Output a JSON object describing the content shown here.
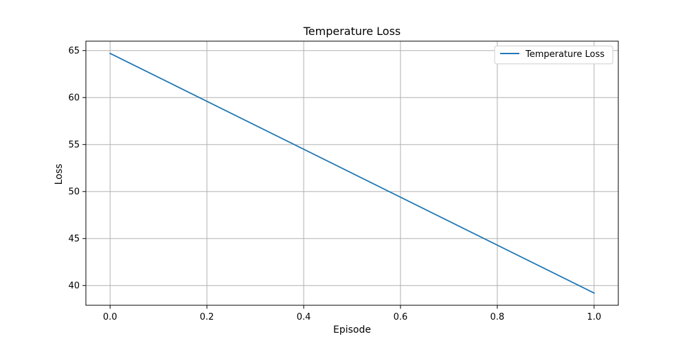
{
  "chart_data": {
    "type": "line",
    "title": "Temperature Loss",
    "xlabel": "Episode",
    "ylabel": "Loss",
    "xlim": [
      -0.05,
      1.05
    ],
    "ylim": [
      37.9,
      66.0
    ],
    "xticks": [
      0.0,
      0.2,
      0.4,
      0.6,
      0.8,
      1.0
    ],
    "xtick_labels": [
      "0.0",
      "0.2",
      "0.4",
      "0.6",
      "0.8",
      "1.0"
    ],
    "yticks": [
      40,
      45,
      50,
      55,
      60,
      65
    ],
    "ytick_labels": [
      "40",
      "45",
      "50",
      "55",
      "60",
      "65"
    ],
    "grid": true,
    "legend_position": "top-right",
    "series": [
      {
        "name": "Temperature Loss",
        "color": "#1f77b4",
        "x": [
          0.0,
          1.0
        ],
        "y": [
          64.7,
          39.2
        ]
      }
    ]
  }
}
